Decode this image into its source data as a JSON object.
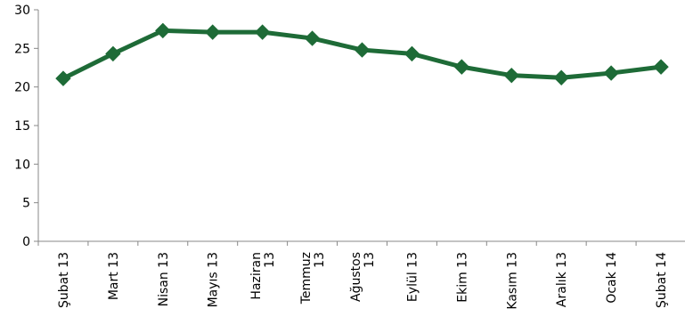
{
  "chart_data": {
    "type": "line",
    "title": "",
    "xlabel": "",
    "ylabel": "",
    "ylim": [
      0,
      30
    ],
    "yticks": [
      0,
      5,
      10,
      15,
      20,
      25,
      30
    ],
    "grid": false,
    "legend": "none",
    "categories": [
      [
        "Şubat 13"
      ],
      [
        "Mart 13"
      ],
      [
        "Nisan 13"
      ],
      [
        "Mayıs 13"
      ],
      [
        "Haziran",
        "13"
      ],
      [
        "Temmuz",
        "13"
      ],
      [
        "Ağustos",
        "13"
      ],
      [
        "Eylül 13"
      ],
      [
        "Ekim 13"
      ],
      [
        "Kasım 13"
      ],
      [
        "Aralık 13"
      ],
      [
        "Ocak 14"
      ],
      [
        "Şubat 14"
      ]
    ],
    "series": [
      {
        "values": [
          21.1,
          24.3,
          27.3,
          27.1,
          27.1,
          26.3,
          24.8,
          24.3,
          22.6,
          21.5,
          21.2,
          21.8,
          22.6
        ]
      }
    ],
    "colors": {
      "line": "#1e6b37",
      "marker": "#1e6b37",
      "axis": "#888888"
    }
  }
}
